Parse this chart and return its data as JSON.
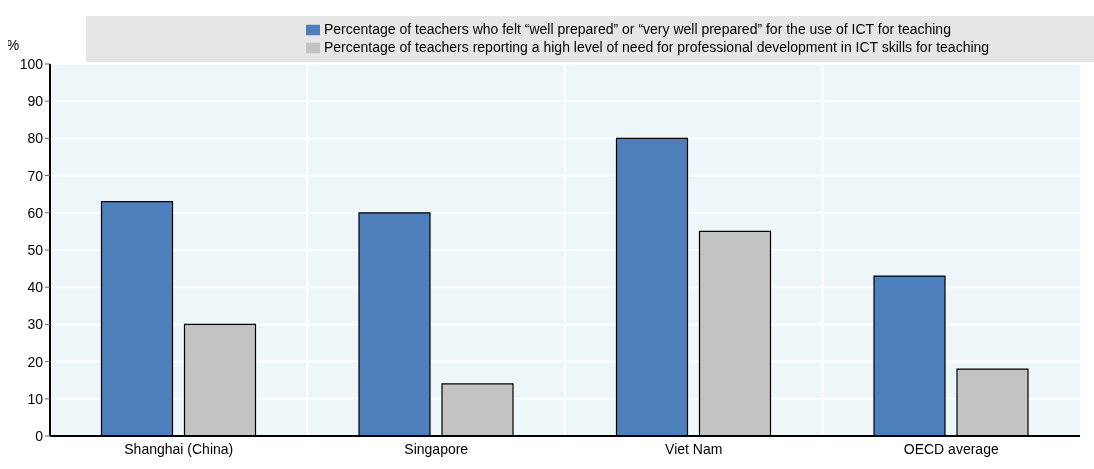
{
  "chart_data": {
    "type": "bar",
    "ylabel": "%",
    "categories": [
      "Shanghai (China)",
      "Singapore",
      "Viet Nam",
      "OECD average"
    ],
    "series": [
      {
        "name": "Percentage of teachers who felt “well prepared” or “very well prepared” for the use of ICT for teaching",
        "color": "#4d7fbc",
        "values": [
          63,
          60,
          80,
          43
        ]
      },
      {
        "name": "Percentage of teachers reporting a high level of need for professional development in ICT skills for teaching",
        "color": "#c2c3c2",
        "values": [
          30,
          14,
          55,
          18
        ]
      }
    ],
    "ylim": [
      0,
      100
    ],
    "yticks": [
      0,
      10,
      20,
      30,
      40,
      50,
      60,
      70,
      80,
      90,
      100
    ],
    "grid": true,
    "legend": "top"
  }
}
